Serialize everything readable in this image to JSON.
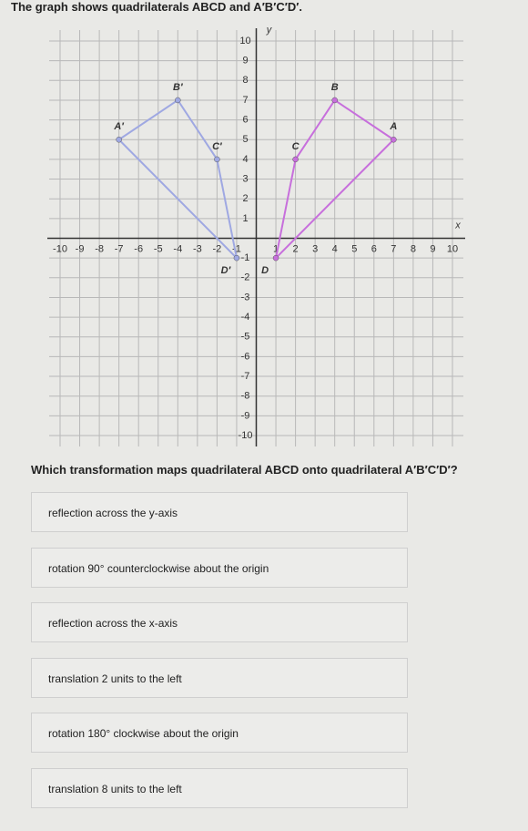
{
  "question": {
    "intro": "The graph shows quadrilaterals ABCD and A′B′C′D′.",
    "prompt": "Which transformation maps quadrilateral ABCD onto quadrilateral A′B′C′D′?"
  },
  "graph": {
    "xlim": [
      -10,
      10
    ],
    "ylim": [
      -10,
      10
    ],
    "xticks": [
      -10,
      -9,
      -8,
      -7,
      -6,
      -5,
      -4,
      -3,
      -2,
      -1,
      1,
      2,
      3,
      4,
      5,
      6,
      7,
      8,
      9,
      10
    ],
    "yticks": [
      -10,
      -9,
      -8,
      -7,
      -6,
      -5,
      -4,
      -3,
      -2,
      -1,
      1,
      2,
      3,
      4,
      5,
      6,
      7,
      8,
      9,
      10
    ],
    "x_label": "x",
    "y_label": "y",
    "shapes": [
      {
        "color": "#c76fdc",
        "points": [
          {
            "label": "A",
            "x": 7,
            "y": 5
          },
          {
            "label": "B",
            "x": 4,
            "y": 7
          },
          {
            "label": "C",
            "x": 2,
            "y": 4
          },
          {
            "label": "D",
            "x": 1,
            "y": -1
          }
        ]
      },
      {
        "color": "#9fa8e2",
        "points": [
          {
            "label": "A′",
            "x": -7,
            "y": 5
          },
          {
            "label": "B′",
            "x": -4,
            "y": 7
          },
          {
            "label": "C′",
            "x": -2,
            "y": 4
          },
          {
            "label": "D′",
            "x": -1,
            "y": -1
          }
        ]
      }
    ]
  },
  "options": [
    "reflection across the y-axis",
    "rotation 90° counterclockwise about the origin",
    "reflection across the x-axis",
    "translation 2 units to the left",
    "rotation 180° clockwise about the origin",
    "translation 8 units to the left"
  ]
}
